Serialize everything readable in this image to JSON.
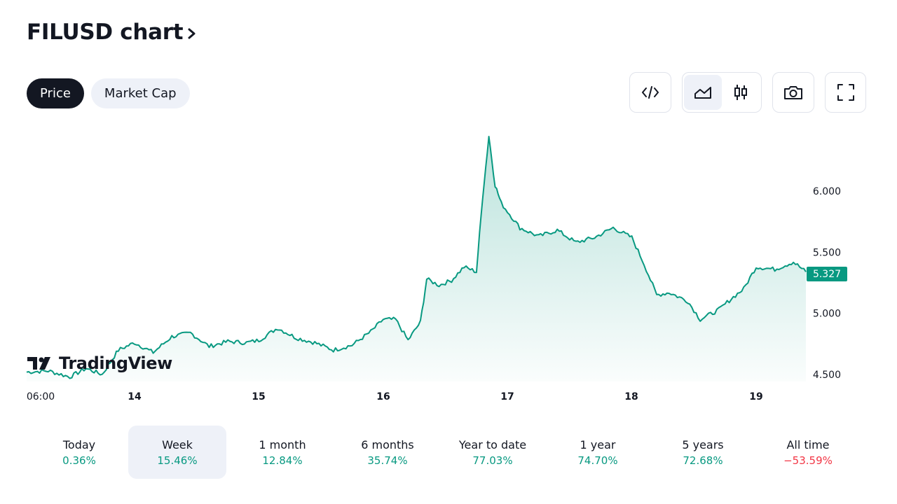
{
  "header": {
    "title": "FILUSD chart"
  },
  "tabs": [
    {
      "label": "Price",
      "active": true
    },
    {
      "label": "Market Cap",
      "active": false
    }
  ],
  "toolbar": {
    "embed_icon": "code-icon",
    "line_icon": "area-chart-icon",
    "candle_icon": "candlestick-icon",
    "snapshot_icon": "camera-icon",
    "fullscreen_icon": "fullscreen-icon"
  },
  "brand": {
    "name": "TradingView"
  },
  "colors": {
    "accent": "#089981",
    "negative": "#f23645",
    "dark": "#131722",
    "pill": "#eef1f8"
  },
  "chart_data": {
    "type": "area",
    "symbol": "FILUSD",
    "last_price_label": "5.327",
    "y_ticks": [
      "6.000",
      "5.500",
      "5.000",
      "4.500"
    ],
    "ylim": [
      4.45,
      6.55
    ],
    "x_ticks": [
      {
        "label": "06:00",
        "bold": false
      },
      {
        "label": "14",
        "bold": true
      },
      {
        "label": "15",
        "bold": true
      },
      {
        "label": "16",
        "bold": true
      },
      {
        "label": "17",
        "bold": true
      },
      {
        "label": "18",
        "bold": true
      },
      {
        "label": "19",
        "bold": true
      }
    ],
    "series": [
      {
        "x_days": [
          13.0,
          13.2,
          13.4,
          13.55,
          13.7,
          13.85,
          14.0,
          14.15,
          14.3,
          14.45,
          14.6,
          14.75,
          14.9,
          15.0,
          15.15,
          15.3,
          15.45,
          15.6,
          15.75,
          15.9,
          16.0,
          16.1,
          16.2,
          16.3,
          16.35,
          16.45,
          16.55,
          16.65,
          16.75,
          16.8,
          16.85,
          16.9,
          16.95,
          17.1,
          17.25,
          17.4,
          17.55,
          17.7,
          17.85,
          18.0,
          18.1,
          18.2,
          18.3,
          18.45,
          18.55,
          18.7,
          18.8,
          18.9,
          19.0,
          19.15,
          19.3,
          19.4
        ],
        "values": [
          4.52,
          4.53,
          4.48,
          4.55,
          4.5,
          4.7,
          4.76,
          4.68,
          4.81,
          4.84,
          4.73,
          4.77,
          4.76,
          4.78,
          4.88,
          4.8,
          4.76,
          4.7,
          4.74,
          4.85,
          4.95,
          4.95,
          4.78,
          4.93,
          5.28,
          5.23,
          5.27,
          5.38,
          5.34,
          5.95,
          6.45,
          6.05,
          5.9,
          5.7,
          5.63,
          5.68,
          5.58,
          5.62,
          5.7,
          5.62,
          5.4,
          5.15,
          5.17,
          5.1,
          4.95,
          5.03,
          5.12,
          5.2,
          5.38,
          5.36,
          5.42,
          5.34
        ]
      }
    ]
  },
  "periods": [
    {
      "label": "Today",
      "value": "0.36%",
      "trend": "pos",
      "active": false
    },
    {
      "label": "Week",
      "value": "15.46%",
      "trend": "pos",
      "active": true
    },
    {
      "label": "1 month",
      "value": "12.84%",
      "trend": "pos",
      "active": false
    },
    {
      "label": "6 months",
      "value": "35.74%",
      "trend": "pos",
      "active": false
    },
    {
      "label": "Year to date",
      "value": "77.03%",
      "trend": "pos",
      "active": false
    },
    {
      "label": "1 year",
      "value": "74.70%",
      "trend": "pos",
      "active": false
    },
    {
      "label": "5 years",
      "value": "72.68%",
      "trend": "pos",
      "active": false
    },
    {
      "label": "All time",
      "value": "−53.59%",
      "trend": "neg",
      "active": false
    }
  ]
}
